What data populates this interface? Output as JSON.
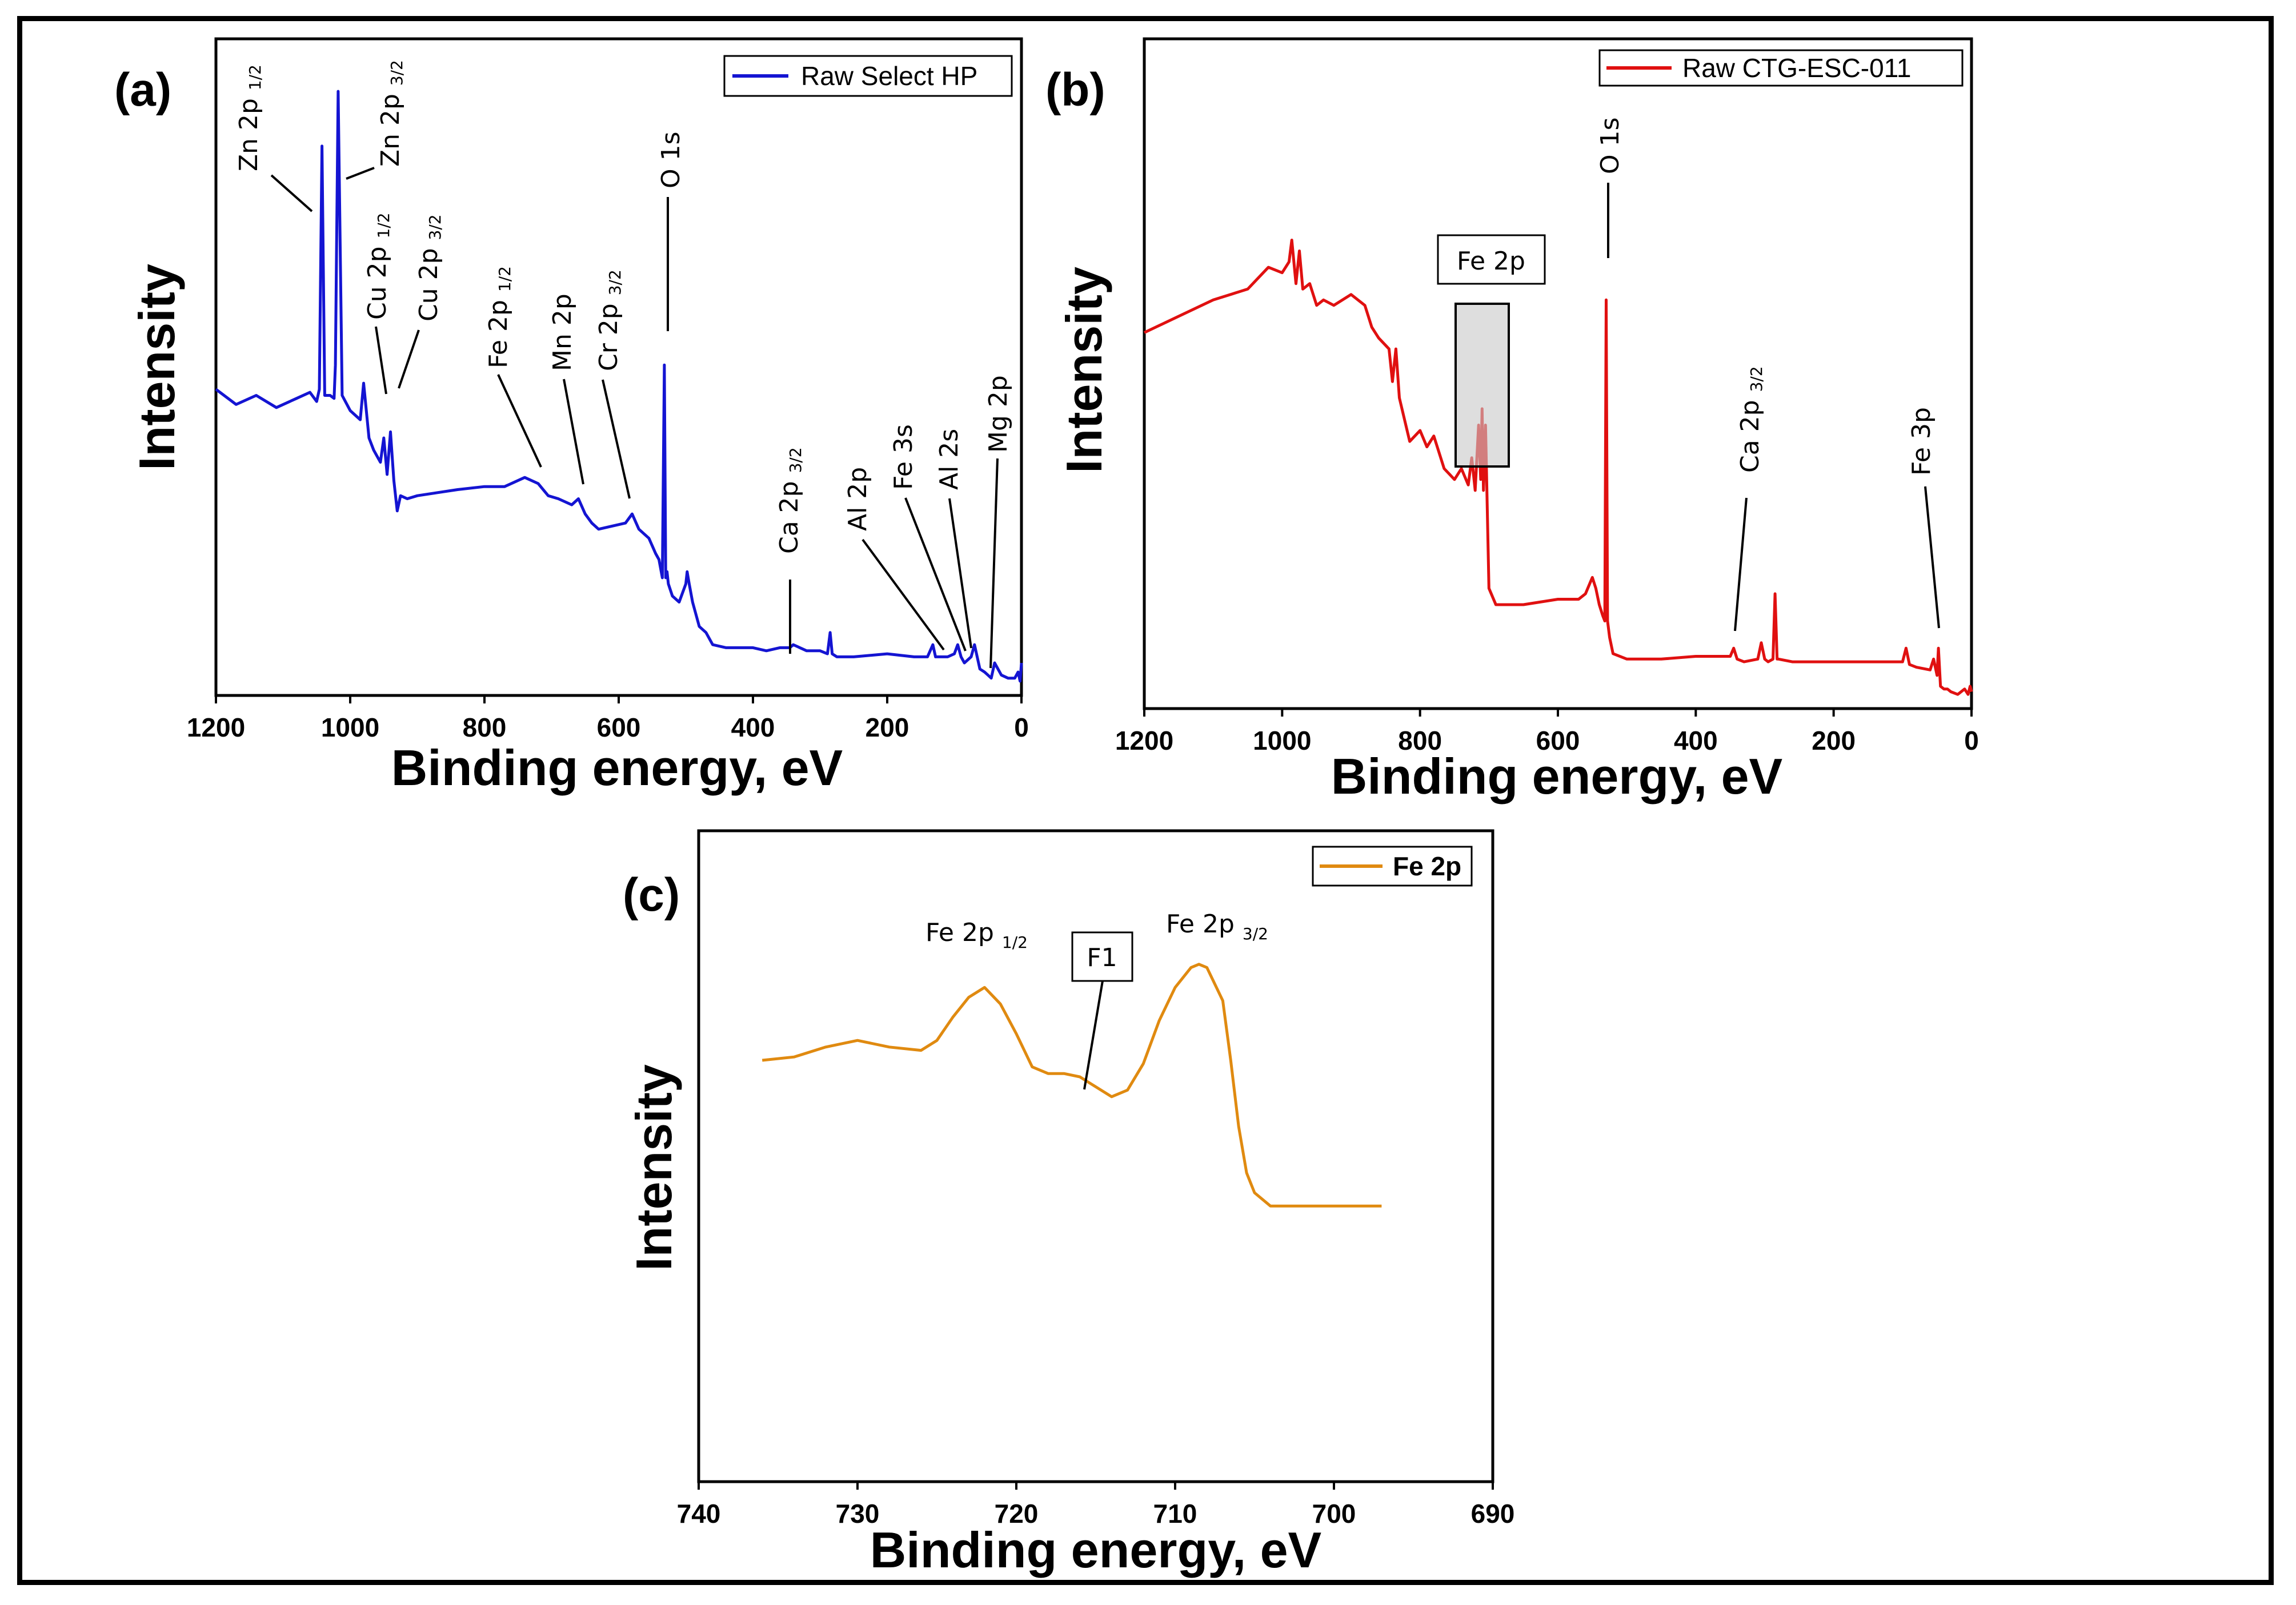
{
  "chart_data": [
    {
      "id": "a",
      "type": "line",
      "panel_label": "(a)",
      "xlabel": "Binding energy, eV",
      "ylabel": "Intensity",
      "xlim": [
        1200,
        0
      ],
      "ylim": [
        0,
        100
      ],
      "x_ticks": [
        1200,
        1000,
        800,
        600,
        400,
        200,
        0
      ],
      "legend": "Raw Select HP",
      "color": "#1414d2",
      "series": [
        {
          "name": "Raw Select HP",
          "x": [
            1200,
            1170,
            1140,
            1110,
            1080,
            1060,
            1050,
            1046,
            1042,
            1038,
            1030,
            1024,
            1022,
            1018,
            1012,
            1000,
            985,
            980,
            972,
            965,
            955,
            950,
            945,
            940,
            935,
            930,
            925,
            915,
            900,
            870,
            840,
            800,
            770,
            740,
            720,
            705,
            690,
            670,
            660,
            650,
            640,
            630,
            610,
            590,
            580,
            570,
            555,
            545,
            540,
            535,
            532,
            530,
            528,
            526,
            520,
            510,
            500,
            498,
            495,
            490,
            480,
            470,
            460,
            440,
            420,
            400,
            380,
            360,
            345,
            340,
            320,
            300,
            289,
            285,
            282,
            275,
            250,
            200,
            160,
            140,
            132,
            128,
            120,
            110,
            100,
            95,
            90,
            85,
            75,
            70,
            62,
            55,
            50,
            45,
            40,
            30,
            20,
            10,
            5,
            2,
            0
          ],
          "y": [
            48,
            45.5,
            47,
            45,
            46.5,
            47.5,
            46,
            48,
            88,
            47,
            47,
            46.5,
            52,
            97,
            47,
            44.5,
            43,
            49,
            40,
            38,
            36,
            40,
            34,
            41,
            33,
            28,
            30.5,
            30,
            30.5,
            31,
            31.5,
            32,
            32,
            33.5,
            32.5,
            30.5,
            30,
            29,
            30,
            27.5,
            26,
            25,
            25.5,
            26,
            27.5,
            25,
            23.5,
            21,
            20,
            17,
            52,
            17,
            18,
            16,
            14,
            13,
            16,
            18,
            16,
            13,
            9,
            8,
            6,
            5.5,
            5.5,
            5.5,
            5,
            5.5,
            5.5,
            6,
            5,
            5,
            4.5,
            8,
            4.5,
            4,
            4,
            4.5,
            4,
            4,
            6,
            4,
            4,
            4,
            4.5,
            6,
            4,
            3,
            4,
            6,
            2,
            1.5,
            1,
            0.5,
            3,
            1,
            0.5,
            0.5,
            1.5,
            0,
            3
          ]
        }
      ],
      "annotations": [
        "Zn 2p 1/2",
        "Zn 2p 3/2",
        "Cu 2p 1/2",
        "Cu 2p 3/2",
        "Fe 2p 1/2",
        "Mn 2p",
        "Cr 2p 3/2",
        "O 1s",
        "Ca 2p 3/2",
        "Al 2p",
        "Fe 3s",
        "Al 2s",
        "Mg 2p"
      ]
    },
    {
      "id": "b",
      "type": "line",
      "panel_label": "(b)",
      "xlabel": "Binding energy, eV",
      "ylabel": "Intensity",
      "xlim": [
        1200,
        0
      ],
      "ylim": [
        0,
        100
      ],
      "x_ticks": [
        1200,
        1000,
        800,
        600,
        400,
        200,
        0
      ],
      "legend": "Raw CTG-ESC-011",
      "color": "#e01010",
      "series": [
        {
          "name": "Raw CTG-ESC-011",
          "x": [
            1200,
            1150,
            1100,
            1050,
            1020,
            1000,
            990,
            986,
            980,
            975,
            970,
            960,
            950,
            940,
            925,
            900,
            880,
            870,
            860,
            845,
            840,
            835,
            830,
            815,
            800,
            790,
            780,
            765,
            750,
            740,
            730,
            725,
            720,
            715,
            712,
            710,
            708,
            705,
            700,
            690,
            650,
            600,
            570,
            560,
            550,
            545,
            540,
            535,
            532,
            530,
            528,
            525,
            520,
            500,
            450,
            400,
            350,
            345,
            340,
            330,
            310,
            305,
            300,
            295,
            288,
            285,
            282,
            280,
            260,
            200,
            150,
            100,
            95,
            90,
            80,
            60,
            55,
            50,
            48,
            45,
            40,
            35,
            30,
            20,
            10,
            5,
            2,
            0
          ],
          "y": [
            67,
            70,
            73,
            75,
            79,
            78,
            80,
            84,
            76,
            82,
            75,
            76,
            72,
            73,
            72,
            74,
            72,
            68,
            66,
            64,
            58,
            64,
            55,
            47,
            49,
            46,
            48,
            42,
            40,
            42,
            39,
            44,
            38,
            50,
            40,
            53,
            38,
            50,
            20,
            17,
            17,
            18,
            18,
            19,
            22,
            20,
            17,
            15,
            14,
            73,
            14,
            11,
            8,
            7,
            7,
            7.5,
            7.5,
            9,
            7,
            6.5,
            7,
            10,
            7,
            6.5,
            7,
            19,
            7,
            7,
            6.5,
            6.5,
            6.5,
            6.5,
            9,
            6,
            5.5,
            5,
            7,
            4,
            9,
            2,
            1.5,
            1.5,
            1,
            0.5,
            1.5,
            0.5,
            2,
            1
          ]
        }
      ],
      "annotations": [
        "Fe 2p",
        "O 1s",
        "Ca 2p 3/2",
        "Fe 3p"
      ]
    },
    {
      "id": "c",
      "type": "line",
      "panel_label": "(c)",
      "xlabel": "Binding energy, eV",
      "ylabel": "Intensity",
      "xlim": [
        740,
        690
      ],
      "ylim": [
        0,
        100
      ],
      "x_ticks": [
        740,
        730,
        720,
        710,
        700,
        690
      ],
      "legend": "Fe 2p",
      "color": "#e08a10",
      "series": [
        {
          "name": "Fe 2p",
          "x": [
            736,
            734,
            732,
            730,
            728,
            726,
            725,
            724,
            723,
            722,
            721,
            720,
            719,
            718,
            717,
            716,
            715,
            714,
            713,
            712,
            711,
            710,
            709,
            708.5,
            708,
            707,
            706.5,
            706,
            705.5,
            705,
            704,
            703,
            702,
            700,
            698,
            697
          ],
          "y": [
            60,
            61,
            64,
            66,
            64,
            63,
            66,
            73,
            79,
            82,
            77,
            68,
            58,
            56,
            56,
            55,
            52,
            49,
            51,
            59,
            72,
            82,
            88,
            89,
            88,
            78,
            60,
            40,
            26,
            20,
            16,
            16,
            16,
            16,
            16,
            16
          ]
        }
      ],
      "annotations": [
        "Fe 2p 1/2",
        "F1",
        "Fe 2p 3/2"
      ]
    }
  ]
}
